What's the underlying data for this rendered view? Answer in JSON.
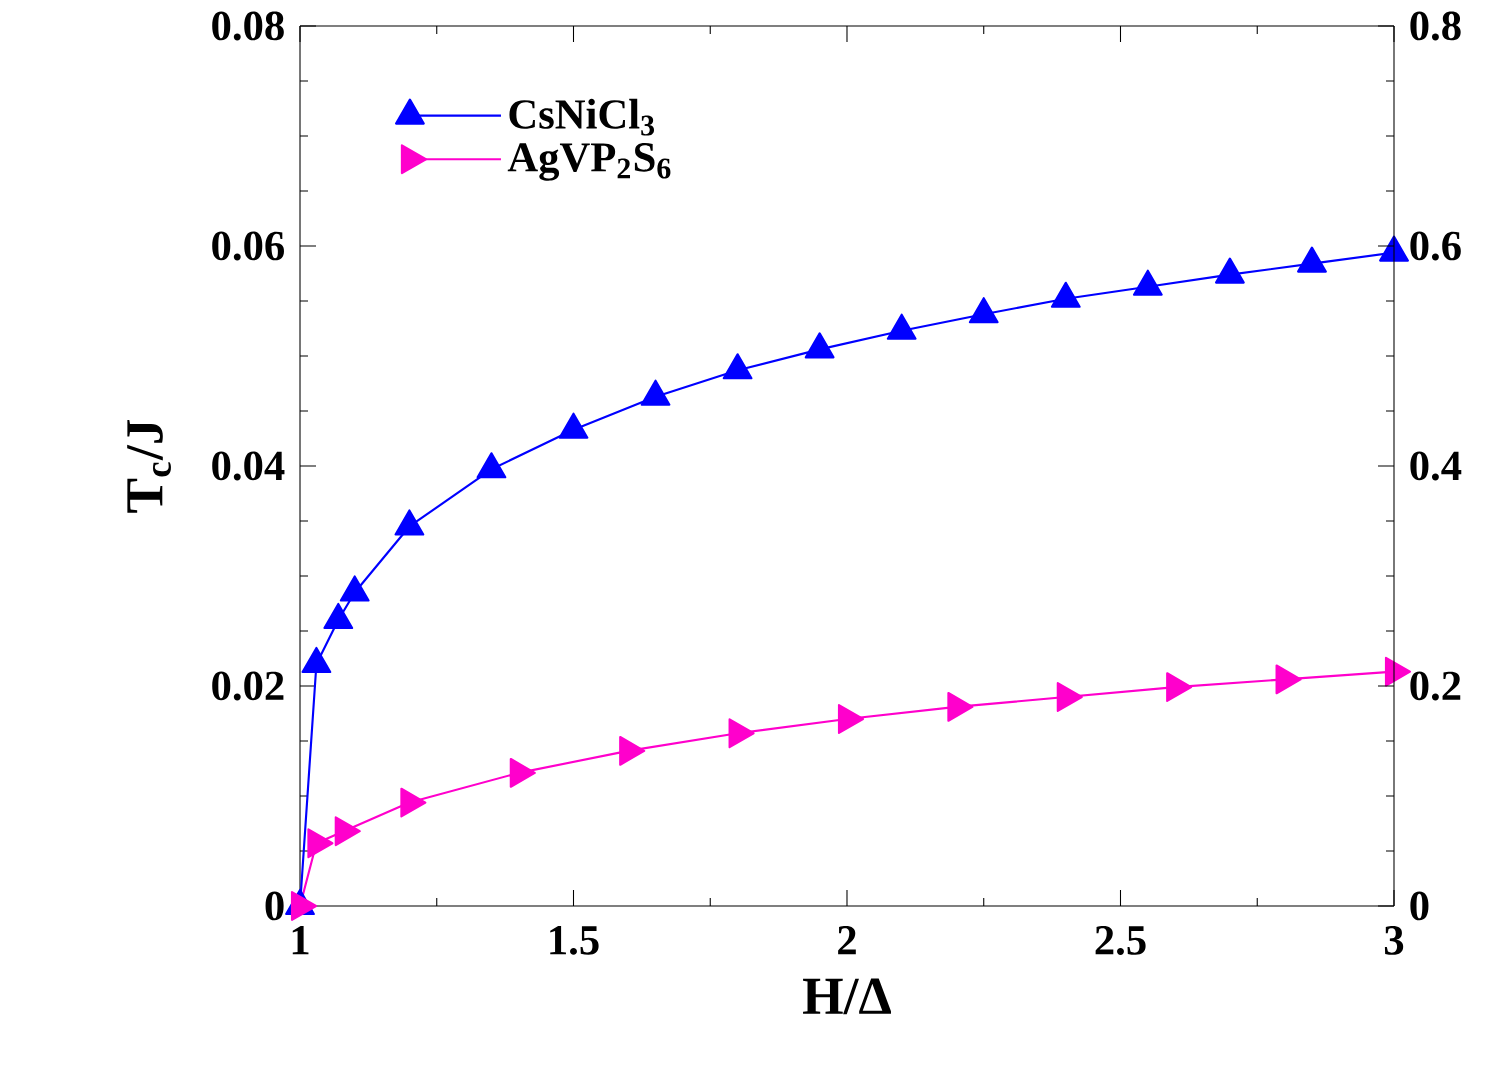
{
  "chart_data": {
    "type": "line",
    "xlabel": "H/Δ",
    "ylabel": "T$_{c}$/J",
    "xlim": [
      1,
      3
    ],
    "xticks": [
      1,
      1.5,
      2,
      2.5,
      3
    ],
    "ylim": [
      0,
      0.08
    ],
    "yticks": [
      0,
      0.02,
      0.04,
      0.06,
      0.08
    ],
    "y2lim": [
      0,
      0.8
    ],
    "y2ticks": [
      0,
      0.2,
      0.4,
      0.6,
      0.8
    ],
    "legend": "top left",
    "series": [
      {
        "name": "CsNiCl$_{3}$",
        "color": "#0000ff",
        "marker": "triangle",
        "x": [
          1,
          1.03,
          1.07,
          1.1,
          1.2,
          1.35,
          1.5,
          1.65,
          1.8,
          1.95,
          2.1,
          2.25,
          2.4,
          2.55,
          2.7,
          2.85,
          3.0
        ],
        "values": [
          0,
          0.022,
          0.026,
          0.0285,
          0.0345,
          0.0397,
          0.0433,
          0.0463,
          0.0487,
          0.0506,
          0.0523,
          0.0538,
          0.0552,
          0.0563,
          0.0574,
          0.0584,
          0.0594
        ]
      },
      {
        "name": "AgVP$_{2}$S$_{6}$",
        "color": "#ff00cc",
        "marker": "triangle-right",
        "x": [
          1,
          1.03,
          1.08,
          1.2,
          1.4,
          1.6,
          1.8,
          2.0,
          2.2,
          2.4,
          2.6,
          2.8,
          3.0
        ],
        "values": [
          0,
          0.0057,
          0.0068,
          0.0094,
          0.0121,
          0.0141,
          0.0157,
          0.017,
          0.0181,
          0.019,
          0.0199,
          0.0206,
          0.0213
        ]
      }
    ]
  }
}
